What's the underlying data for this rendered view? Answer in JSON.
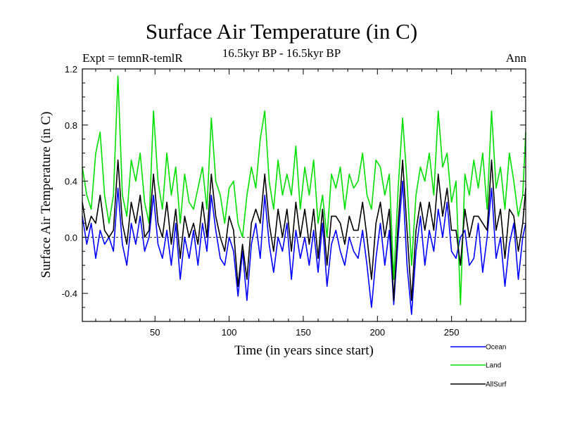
{
  "header": {
    "title": "Surface Air Temperature (in C)",
    "expt": "Expt = temnR-temlR",
    "period": "16.5kyr BP - 16.5kyr BP",
    "season": "Ann"
  },
  "chart_data": {
    "type": "line",
    "title": "Surface Air Temperature (in C)",
    "xlabel": "Time (in years since start)",
    "ylabel": "Surface Air Temperature (in C)",
    "xlim": [
      1,
      300
    ],
    "ylim": [
      -0.6,
      1.2
    ],
    "x_ticks": [
      50,
      100,
      150,
      200,
      250
    ],
    "y_ticks": [
      1.2,
      0.8,
      0.4,
      0.0,
      -0.4
    ],
    "y_tick_labels": [
      "1.2",
      "0.8",
      "0.4",
      "0.0",
      "-0.4"
    ],
    "zero_line": true,
    "legend_position": "bottom-right, outside plot",
    "series": [
      {
        "name": "Ocean",
        "color": "#0000ff",
        "x": [
          1,
          4,
          7,
          10,
          13,
          16,
          19,
          22,
          25,
          28,
          31,
          34,
          37,
          40,
          43,
          46,
          49,
          52,
          55,
          58,
          61,
          64,
          67,
          70,
          73,
          76,
          79,
          82,
          85,
          88,
          91,
          94,
          97,
          100,
          103,
          106,
          109,
          112,
          115,
          118,
          121,
          124,
          127,
          130,
          133,
          136,
          139,
          142,
          145,
          148,
          151,
          154,
          157,
          160,
          163,
          166,
          169,
          172,
          175,
          178,
          181,
          184,
          187,
          190,
          193,
          196,
          199,
          202,
          205,
          208,
          211,
          214,
          217,
          220,
          223,
          226,
          229,
          232,
          235,
          238,
          241,
          244,
          247,
          250,
          253,
          256,
          259,
          262,
          265,
          268,
          271,
          274,
          277,
          280,
          283,
          286,
          289,
          292,
          295,
          298,
          300
        ],
        "values": [
          0.15,
          -0.05,
          0.1,
          -0.15,
          0.05,
          -0.05,
          0.0,
          -0.1,
          0.35,
          -0.05,
          -0.2,
          0.1,
          -0.05,
          0.15,
          -0.1,
          0.0,
          0.3,
          -0.05,
          -0.15,
          0.05,
          -0.2,
          0.1,
          -0.3,
          0.0,
          -0.15,
          0.05,
          -0.2,
          0.1,
          -0.1,
          0.3,
          0.05,
          -0.15,
          -0.2,
          0.0,
          -0.1,
          -0.42,
          -0.1,
          -0.45,
          -0.05,
          0.1,
          -0.15,
          0.3,
          -0.05,
          -0.25,
          0.0,
          -0.1,
          0.1,
          -0.3,
          0.05,
          -0.15,
          0.0,
          -0.2,
          0.05,
          -0.25,
          0.1,
          -0.35,
          -0.05,
          0.05,
          -0.1,
          -0.2,
          0.0,
          -0.1,
          -0.15,
          0.05,
          -0.2,
          -0.5,
          -0.15,
          0.1,
          -0.2,
          0.05,
          -0.48,
          0.0,
          0.4,
          -0.2,
          -0.55,
          -0.1,
          0.15,
          -0.2,
          0.05,
          -0.1,
          0.2,
          0.0,
          0.25,
          -0.1,
          -0.15,
          0.0,
          0.05,
          -0.2,
          -0.15,
          0.1,
          -0.25,
          0.0,
          0.35,
          -0.15,
          0.0,
          -0.35,
          -0.05,
          0.1,
          -0.3,
          0.0,
          0.1
        ]
      },
      {
        "name": "Land",
        "color": "#00e000",
        "x": [
          1,
          4,
          7,
          10,
          13,
          16,
          19,
          22,
          25,
          28,
          31,
          34,
          37,
          40,
          43,
          46,
          49,
          52,
          55,
          58,
          61,
          64,
          67,
          70,
          73,
          76,
          79,
          82,
          85,
          88,
          91,
          94,
          97,
          100,
          103,
          106,
          109,
          112,
          115,
          118,
          121,
          124,
          127,
          130,
          133,
          136,
          139,
          142,
          145,
          148,
          151,
          154,
          157,
          160,
          163,
          166,
          169,
          172,
          175,
          178,
          181,
          184,
          187,
          190,
          193,
          196,
          199,
          202,
          205,
          208,
          211,
          214,
          217,
          220,
          223,
          226,
          229,
          232,
          235,
          238,
          241,
          244,
          247,
          250,
          253,
          256,
          259,
          262,
          265,
          268,
          271,
          274,
          277,
          280,
          283,
          286,
          289,
          292,
          295,
          298,
          300
        ],
        "values": [
          0.5,
          0.3,
          0.2,
          0.6,
          0.75,
          0.3,
          0.1,
          0.3,
          1.15,
          0.3,
          0.15,
          0.55,
          0.4,
          0.6,
          0.25,
          0.1,
          0.9,
          0.4,
          0.2,
          0.6,
          0.3,
          0.5,
          0.1,
          0.45,
          0.25,
          0.2,
          0.35,
          0.5,
          0.2,
          0.85,
          0.4,
          0.3,
          0.1,
          0.35,
          0.4,
          0.1,
          0.0,
          0.3,
          0.5,
          0.35,
          0.7,
          0.9,
          0.4,
          0.2,
          0.55,
          0.3,
          0.45,
          0.3,
          0.65,
          0.2,
          0.5,
          0.3,
          0.55,
          0.1,
          0.3,
          0.0,
          0.45,
          0.35,
          0.5,
          0.2,
          0.45,
          0.35,
          0.4,
          0.6,
          0.3,
          0.2,
          0.55,
          0.5,
          0.3,
          0.45,
          -0.3,
          0.35,
          0.85,
          0.4,
          -0.2,
          0.3,
          0.5,
          0.4,
          0.6,
          0.3,
          0.9,
          0.5,
          0.6,
          0.25,
          0.4,
          -0.48,
          0.45,
          0.3,
          0.55,
          0.35,
          0.6,
          0.2,
          0.9,
          0.35,
          0.5,
          0.2,
          0.6,
          0.4,
          0.15,
          0.3,
          0.75
        ]
      },
      {
        "name": "AllSurf",
        "color": "#000000",
        "x": [
          1,
          4,
          7,
          10,
          13,
          16,
          19,
          22,
          25,
          28,
          31,
          34,
          37,
          40,
          43,
          46,
          49,
          52,
          55,
          58,
          61,
          64,
          67,
          70,
          73,
          76,
          79,
          82,
          85,
          88,
          91,
          94,
          97,
          100,
          103,
          106,
          109,
          112,
          115,
          118,
          121,
          124,
          127,
          130,
          133,
          136,
          139,
          142,
          145,
          148,
          151,
          154,
          157,
          160,
          163,
          166,
          169,
          172,
          175,
          178,
          181,
          184,
          187,
          190,
          193,
          196,
          199,
          202,
          205,
          208,
          211,
          214,
          217,
          220,
          223,
          226,
          229,
          232,
          235,
          238,
          241,
          244,
          247,
          250,
          253,
          256,
          259,
          262,
          265,
          268,
          271,
          274,
          277,
          280,
          283,
          286,
          289,
          292,
          295,
          298,
          300
        ],
        "values": [
          0.25,
          0.05,
          0.15,
          0.1,
          0.3,
          0.05,
          0.0,
          0.05,
          0.55,
          0.1,
          -0.05,
          0.25,
          0.1,
          0.3,
          0.0,
          0.05,
          0.45,
          0.1,
          0.0,
          0.25,
          -0.05,
          0.2,
          -0.15,
          0.15,
          0.0,
          0.1,
          -0.05,
          0.25,
          0.0,
          0.45,
          0.15,
          0.0,
          -0.1,
          0.15,
          0.05,
          -0.35,
          -0.05,
          -0.3,
          0.1,
          0.2,
          0.1,
          0.45,
          0.1,
          -0.1,
          0.2,
          0.0,
          0.2,
          -0.1,
          0.25,
          0.0,
          0.2,
          -0.05,
          0.2,
          -0.15,
          0.2,
          -0.2,
          0.15,
          0.15,
          0.1,
          -0.05,
          0.15,
          0.05,
          0.05,
          0.25,
          0.0,
          -0.3,
          0.1,
          0.25,
          0.0,
          0.2,
          -0.45,
          0.1,
          0.55,
          0.05,
          -0.45,
          0.05,
          0.25,
          0.05,
          0.25,
          0.05,
          0.45,
          0.15,
          0.35,
          0.05,
          0.05,
          -0.2,
          0.2,
          0.0,
          0.15,
          0.15,
          0.1,
          0.05,
          0.55,
          0.05,
          0.2,
          -0.15,
          0.2,
          0.15,
          -0.1,
          0.1,
          0.35
        ]
      }
    ]
  }
}
